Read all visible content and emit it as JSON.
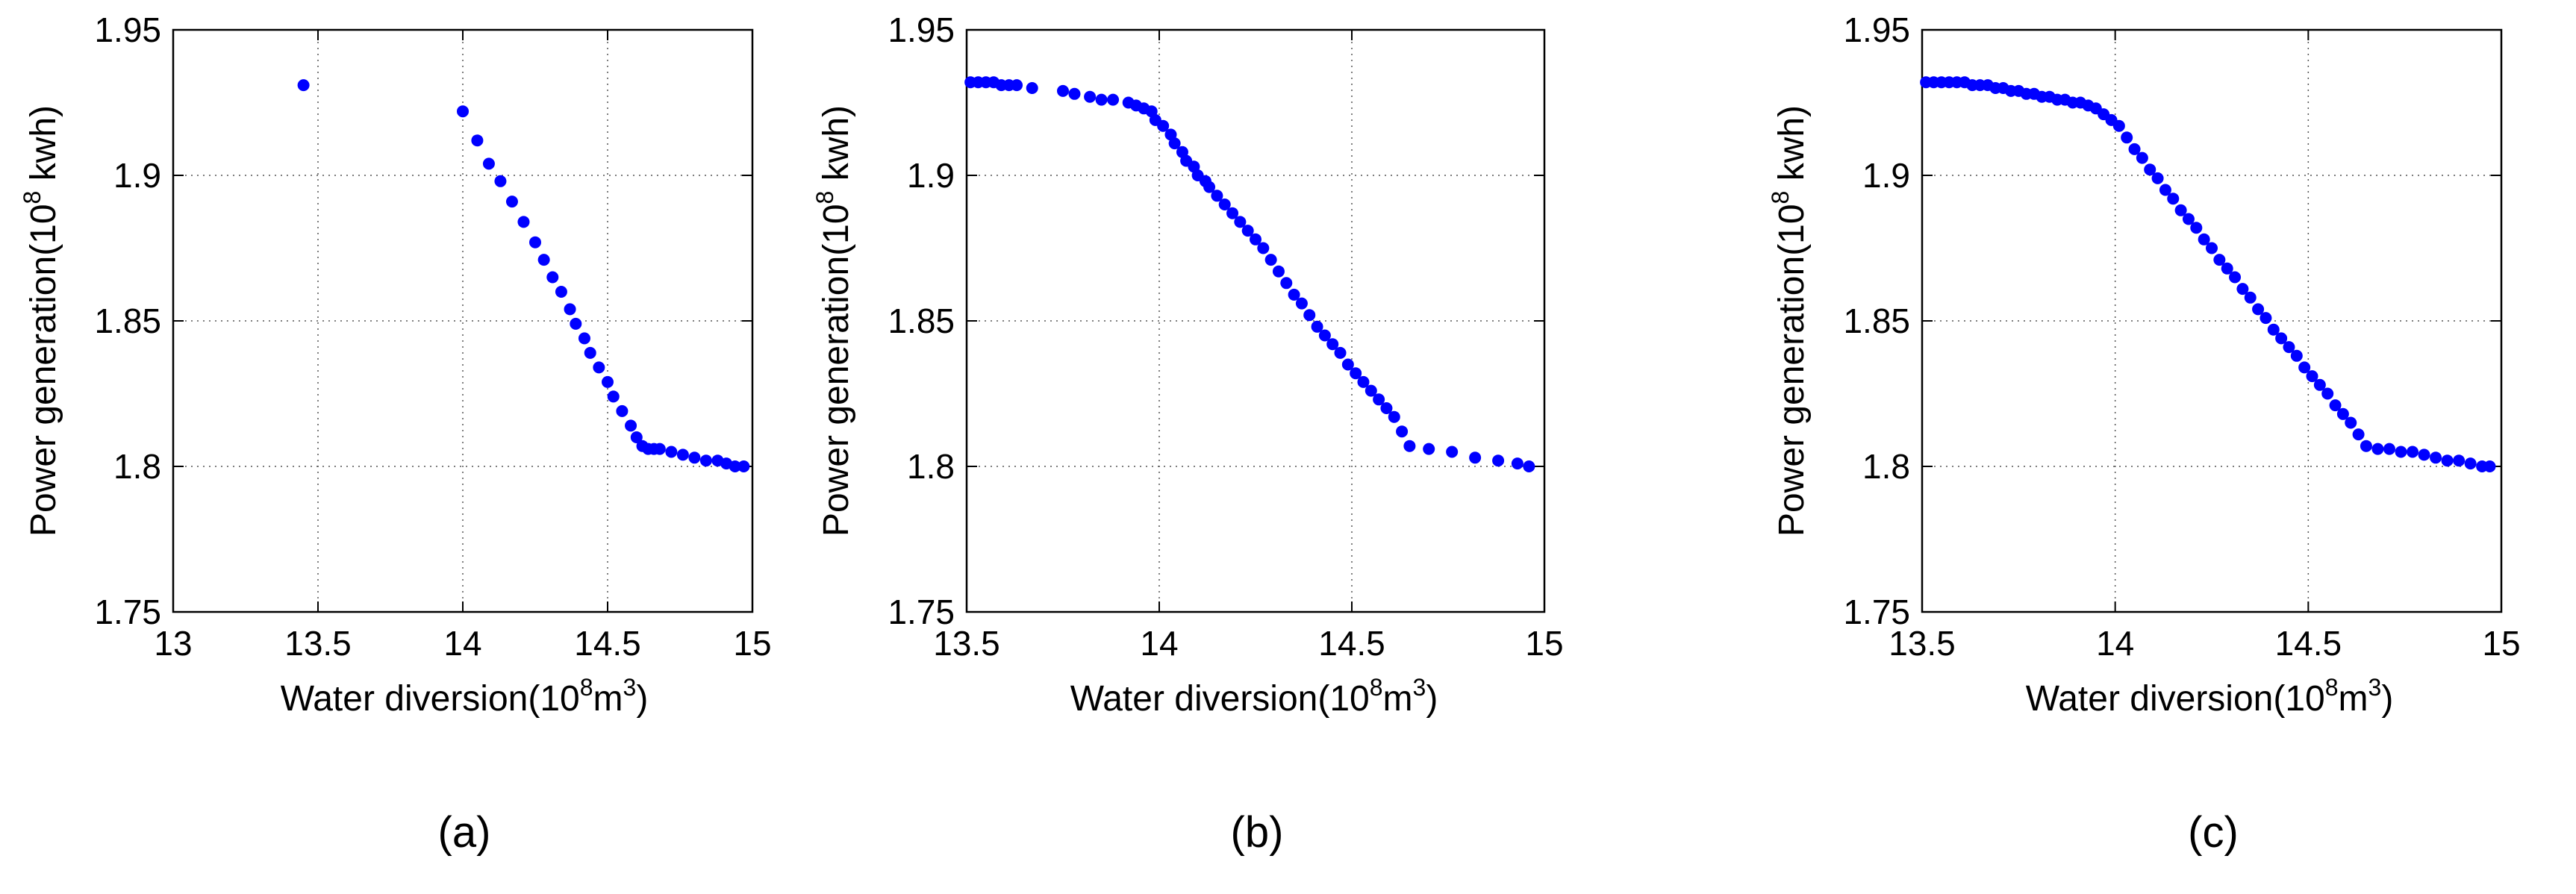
{
  "figure": {
    "captions": [
      "(a)",
      "(b)",
      "(c)"
    ]
  },
  "chart_data": [
    {
      "type": "scatter",
      "panel": "(a)",
      "title": "",
      "xlabel": {
        "prefix": "Water diversion(10",
        "exp1": "8",
        "mid": "m",
        "exp2": "3",
        "suffix": ")"
      },
      "ylabel": {
        "prefix": "Power generation(10",
        "exp1": "8",
        "suffix": " kwh)"
      },
      "xlim": [
        13,
        15
      ],
      "ylim": [
        1.75,
        1.95
      ],
      "xticks": [
        13,
        13.5,
        14,
        14.5,
        15
      ],
      "xtick_labels": [
        "13",
        "13.5",
        "14",
        "14.5",
        "15"
      ],
      "yticks": [
        1.75,
        1.8,
        1.85,
        1.9,
        1.95
      ],
      "ytick_labels": [
        "1.75",
        "1.8",
        "1.85",
        "1.9",
        "1.95"
      ],
      "grid": true,
      "color": "#0000ff",
      "x": [
        13.45,
        14.0,
        14.05,
        14.09,
        14.13,
        14.17,
        14.21,
        14.25,
        14.28,
        14.31,
        14.34,
        14.37,
        14.39,
        14.42,
        14.44,
        14.47,
        14.5,
        14.52,
        14.55,
        14.58,
        14.6,
        14.62,
        14.64,
        14.66,
        14.68,
        14.72,
        14.76,
        14.8,
        14.84,
        14.88,
        14.91,
        14.94,
        14.97
      ],
      "y": [
        1.931,
        1.922,
        1.912,
        1.904,
        1.898,
        1.891,
        1.884,
        1.877,
        1.871,
        1.865,
        1.86,
        1.854,
        1.849,
        1.844,
        1.839,
        1.834,
        1.829,
        1.824,
        1.819,
        1.814,
        1.81,
        1.807,
        1.806,
        1.806,
        1.806,
        1.805,
        1.804,
        1.803,
        1.802,
        1.802,
        1.801,
        1.8,
        1.8
      ]
    },
    {
      "type": "scatter",
      "panel": "(b)",
      "title": "",
      "xlabel": {
        "prefix": "Water diversion(10",
        "exp1": "8",
        "mid": "m",
        "exp2": "3",
        "suffix": ")"
      },
      "ylabel": {
        "prefix": "Power generation(10",
        "exp1": "8",
        "suffix": " kwh)"
      },
      "xlim": [
        13.5,
        15
      ],
      "ylim": [
        1.75,
        1.95
      ],
      "xticks": [
        13.5,
        14,
        14.5,
        15
      ],
      "xtick_labels": [
        "13.5",
        "14",
        "14.5",
        "15"
      ],
      "yticks": [
        1.75,
        1.8,
        1.85,
        1.9,
        1.95
      ],
      "ytick_labels": [
        "1.75",
        "1.8",
        "1.85",
        "1.9",
        "1.95"
      ],
      "grid": true,
      "color": "#0000ff",
      "x": [
        13.51,
        13.53,
        13.55,
        13.57,
        13.59,
        13.61,
        13.63,
        13.67,
        13.75,
        13.78,
        13.82,
        13.85,
        13.88,
        13.92,
        13.94,
        13.96,
        13.98,
        13.99,
        14.01,
        14.03,
        14.04,
        14.06,
        14.07,
        14.09,
        14.1,
        14.12,
        14.13,
        14.15,
        14.17,
        14.19,
        14.21,
        14.23,
        14.25,
        14.27,
        14.29,
        14.31,
        14.33,
        14.35,
        14.37,
        14.39,
        14.41,
        14.43,
        14.45,
        14.47,
        14.49,
        14.51,
        14.53,
        14.55,
        14.57,
        14.59,
        14.61,
        14.63,
        14.65,
        14.7,
        14.76,
        14.82,
        14.88,
        14.93,
        14.96
      ],
      "y": [
        1.932,
        1.932,
        1.932,
        1.932,
        1.931,
        1.931,
        1.931,
        1.93,
        1.929,
        1.928,
        1.927,
        1.926,
        1.926,
        1.925,
        1.924,
        1.923,
        1.922,
        1.919,
        1.917,
        1.914,
        1.911,
        1.908,
        1.905,
        1.903,
        1.9,
        1.898,
        1.896,
        1.893,
        1.89,
        1.887,
        1.884,
        1.881,
        1.878,
        1.875,
        1.871,
        1.867,
        1.863,
        1.859,
        1.856,
        1.852,
        1.848,
        1.845,
        1.842,
        1.839,
        1.835,
        1.832,
        1.829,
        1.826,
        1.823,
        1.82,
        1.817,
        1.812,
        1.807,
        1.806,
        1.805,
        1.803,
        1.802,
        1.801,
        1.8
      ]
    },
    {
      "type": "scatter",
      "panel": "(c)",
      "title": "",
      "xlabel": {
        "prefix": "Water diversion(10",
        "exp1": "8",
        "mid": "m",
        "exp2": "3",
        "suffix": ")"
      },
      "ylabel": {
        "prefix": "Power generation(10",
        "exp1": "8",
        "suffix": " kwh)"
      },
      "xlim": [
        13.5,
        15
      ],
      "ylim": [
        1.75,
        1.95
      ],
      "xticks": [
        13.5,
        14,
        14.5,
        15
      ],
      "xtick_labels": [
        "13.5",
        "14",
        "14.5",
        "15"
      ],
      "yticks": [
        1.75,
        1.8,
        1.85,
        1.9,
        1.95
      ],
      "ytick_labels": [
        "1.75",
        "1.8",
        "1.85",
        "1.9",
        "1.95"
      ],
      "grid": true,
      "color": "#0000ff",
      "x": [
        13.51,
        13.53,
        13.55,
        13.57,
        13.59,
        13.61,
        13.63,
        13.65,
        13.67,
        13.69,
        13.71,
        13.73,
        13.75,
        13.77,
        13.79,
        13.81,
        13.83,
        13.85,
        13.87,
        13.89,
        13.91,
        13.93,
        13.95,
        13.97,
        13.99,
        14.01,
        14.03,
        14.05,
        14.07,
        14.09,
        14.11,
        14.13,
        14.15,
        14.17,
        14.19,
        14.21,
        14.23,
        14.25,
        14.27,
        14.29,
        14.31,
        14.33,
        14.35,
        14.37,
        14.39,
        14.41,
        14.43,
        14.45,
        14.47,
        14.49,
        14.51,
        14.53,
        14.55,
        14.57,
        14.59,
        14.61,
        14.63,
        14.65,
        14.68,
        14.71,
        14.74,
        14.77,
        14.8,
        14.83,
        14.86,
        14.89,
        14.92,
        14.95,
        14.97
      ],
      "y": [
        1.932,
        1.932,
        1.932,
        1.932,
        1.932,
        1.932,
        1.931,
        1.931,
        1.931,
        1.93,
        1.93,
        1.929,
        1.929,
        1.928,
        1.928,
        1.927,
        1.927,
        1.926,
        1.926,
        1.925,
        1.925,
        1.924,
        1.923,
        1.921,
        1.919,
        1.917,
        1.913,
        1.909,
        1.906,
        1.902,
        1.899,
        1.895,
        1.892,
        1.888,
        1.885,
        1.882,
        1.878,
        1.875,
        1.871,
        1.868,
        1.865,
        1.861,
        1.858,
        1.854,
        1.851,
        1.847,
        1.844,
        1.841,
        1.838,
        1.834,
        1.831,
        1.828,
        1.825,
        1.821,
        1.818,
        1.815,
        1.811,
        1.807,
        1.806,
        1.806,
        1.805,
        1.805,
        1.804,
        1.803,
        1.802,
        1.802,
        1.801,
        1.8,
        1.8
      ]
    }
  ]
}
